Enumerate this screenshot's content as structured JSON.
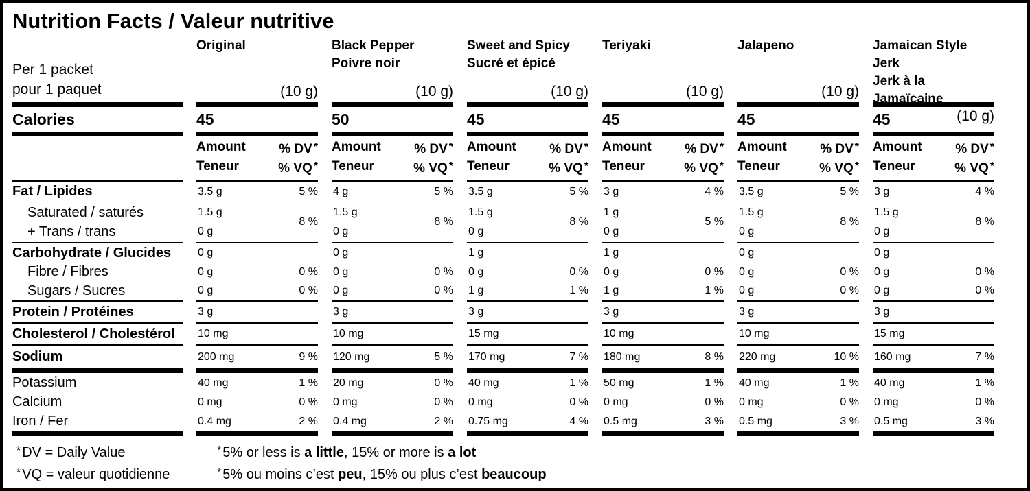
{
  "title": "Nutrition Facts / Valeur nutritive",
  "serving_size": {
    "en": "Per 1 packet",
    "fr": "pour 1 paquet"
  },
  "calories_label": "Calories",
  "amount_header": {
    "amount_en": "Amount",
    "amount_fr": "Teneur",
    "dv_en": "% DV",
    "dv_fr": "% VQ",
    "star": "*"
  },
  "row_labels": {
    "fat": "Fat / Lipides",
    "saturated_line1": "Saturated / saturés",
    "saturated_line2": "+ Trans / trans",
    "carbohydrate": "Carbohydrate / Glucides",
    "fibre": "Fibre / Fibres",
    "sugars": "Sugars / Sucres",
    "protein": "Protein / Protéines",
    "cholesterol": "Cholesterol / Cholestérol",
    "sodium": "Sodium",
    "potassium": "Potassium",
    "calcium": "Calcium",
    "iron": "Iron / Fer"
  },
  "columns": [
    {
      "name_line1": "Original",
      "name_line2": "",
      "qty": "(10 g)",
      "calories": "45",
      "fat": {
        "amount": "3.5 g",
        "dv": "5 %"
      },
      "saturated": {
        "amount1": "1.5 g",
        "amount2": "0 g",
        "dv": "8 %"
      },
      "carbohydrate": {
        "amount": "0 g"
      },
      "fibre": {
        "amount": "0 g",
        "dv": "0 %"
      },
      "sugars": {
        "amount": "0 g",
        "dv": "0 %"
      },
      "protein": {
        "amount": "3 g"
      },
      "cholesterol": {
        "amount": "10 mg"
      },
      "sodium": {
        "amount": "200 mg",
        "dv": "9 %"
      },
      "potassium": {
        "amount": "40 mg",
        "dv": "1 %"
      },
      "calcium": {
        "amount": "0 mg",
        "dv": "0 %"
      },
      "iron": {
        "amount": "0.4 mg",
        "dv": "2 %"
      }
    },
    {
      "name_line1": "Black Pepper",
      "name_line2": "Poivre noir",
      "qty": "(10 g)",
      "calories": "50",
      "fat": {
        "amount": "4 g",
        "dv": "5 %"
      },
      "saturated": {
        "amount1": "1.5 g",
        "amount2": "0 g",
        "dv": "8 %"
      },
      "carbohydrate": {
        "amount": "0 g"
      },
      "fibre": {
        "amount": "0 g",
        "dv": "0 %"
      },
      "sugars": {
        "amount": "0 g",
        "dv": "0 %"
      },
      "protein": {
        "amount": "3 g"
      },
      "cholesterol": {
        "amount": "10 mg"
      },
      "sodium": {
        "amount": "120 mg",
        "dv": "5 %"
      },
      "potassium": {
        "amount": "20 mg",
        "dv": "0 %"
      },
      "calcium": {
        "amount": "0 mg",
        "dv": "0 %"
      },
      "iron": {
        "amount": "0.4 mg",
        "dv": "2 %"
      }
    },
    {
      "name_line1": "Sweet and Spicy",
      "name_line2": "Sucré et épicé",
      "qty": "(10 g)",
      "calories": "45",
      "fat": {
        "amount": "3.5 g",
        "dv": "5 %"
      },
      "saturated": {
        "amount1": "1.5 g",
        "amount2": "0 g",
        "dv": "8 %"
      },
      "carbohydrate": {
        "amount": "1 g"
      },
      "fibre": {
        "amount": "0 g",
        "dv": "0 %"
      },
      "sugars": {
        "amount": "1 g",
        "dv": "1 %"
      },
      "protein": {
        "amount": "3 g"
      },
      "cholesterol": {
        "amount": "15 mg"
      },
      "sodium": {
        "amount": "170 mg",
        "dv": "7 %"
      },
      "potassium": {
        "amount": "40 mg",
        "dv": "1 %"
      },
      "calcium": {
        "amount": "0 mg",
        "dv": "0 %"
      },
      "iron": {
        "amount": "0.75 mg",
        "dv": "4 %"
      }
    },
    {
      "name_line1": "Teriyaki",
      "name_line2": "",
      "qty": "(10 g)",
      "calories": "45",
      "fat": {
        "amount": "3 g",
        "dv": "4 %"
      },
      "saturated": {
        "amount1": "1 g",
        "amount2": "0 g",
        "dv": "5 %"
      },
      "carbohydrate": {
        "amount": "1 g"
      },
      "fibre": {
        "amount": "0 g",
        "dv": "0 %"
      },
      "sugars": {
        "amount": "1 g",
        "dv": "1 %"
      },
      "protein": {
        "amount": "3 g"
      },
      "cholesterol": {
        "amount": "10 mg"
      },
      "sodium": {
        "amount": "180 mg",
        "dv": "8 %"
      },
      "potassium": {
        "amount": "50 mg",
        "dv": "1 %"
      },
      "calcium": {
        "amount": "0 mg",
        "dv": "0 %"
      },
      "iron": {
        "amount": "0.5 mg",
        "dv": "3 %"
      }
    },
    {
      "name_line1": "Jalapeno",
      "name_line2": "",
      "qty": "(10 g)",
      "calories": "45",
      "fat": {
        "amount": "3.5 g",
        "dv": "5 %"
      },
      "saturated": {
        "amount1": "1.5 g",
        "amount2": "0 g",
        "dv": "8 %"
      },
      "carbohydrate": {
        "amount": "0 g"
      },
      "fibre": {
        "amount": "0 g",
        "dv": "0 %"
      },
      "sugars": {
        "amount": "0 g",
        "dv": "0 %"
      },
      "protein": {
        "amount": "3 g"
      },
      "cholesterol": {
        "amount": "10 mg"
      },
      "sodium": {
        "amount": "220 mg",
        "dv": "10 %"
      },
      "potassium": {
        "amount": "40 mg",
        "dv": "1 %"
      },
      "calcium": {
        "amount": "0 mg",
        "dv": "0 %"
      },
      "iron": {
        "amount": "0.5 mg",
        "dv": "3 %"
      }
    },
    {
      "name_line1": "Jamaican Style Jerk",
      "name_line2": "Jerk à la Jamaïcaine",
      "qty": "(10 g)",
      "calories": "45",
      "fat": {
        "amount": "3 g",
        "dv": "4 %"
      },
      "saturated": {
        "amount1": "1.5 g",
        "amount2": "0 g",
        "dv": "8 %"
      },
      "carbohydrate": {
        "amount": "0 g"
      },
      "fibre": {
        "amount": "0 g",
        "dv": "0 %"
      },
      "sugars": {
        "amount": "0 g",
        "dv": "0 %"
      },
      "protein": {
        "amount": "3 g"
      },
      "cholesterol": {
        "amount": "15 mg"
      },
      "sodium": {
        "amount": "160 mg",
        "dv": "7 %"
      },
      "potassium": {
        "amount": "40 mg",
        "dv": "1 %"
      },
      "calcium": {
        "amount": "0 mg",
        "dv": "0 %"
      },
      "iron": {
        "amount": "0.5 mg",
        "dv": "3 %"
      }
    }
  ],
  "footnotes": {
    "dv_definition": {
      "star": "*",
      "text": "DV = Daily Value"
    },
    "vq_definition": {
      "star": "*",
      "text": "VQ = valeur quotidienne"
    },
    "en": {
      "star": "*",
      "seg1": "5% or less is ",
      "bold1": "a little",
      "seg2": ", 15% or more is ",
      "bold2": "a lot"
    },
    "fr": {
      "star": "*",
      "seg1": "5% ou moins c’est ",
      "bold1": "peu",
      "seg2": ", 15% ou plus c’est ",
      "bold2": "beaucoup"
    }
  },
  "colors": {
    "ink": "#000000",
    "background": "#ffffff"
  }
}
